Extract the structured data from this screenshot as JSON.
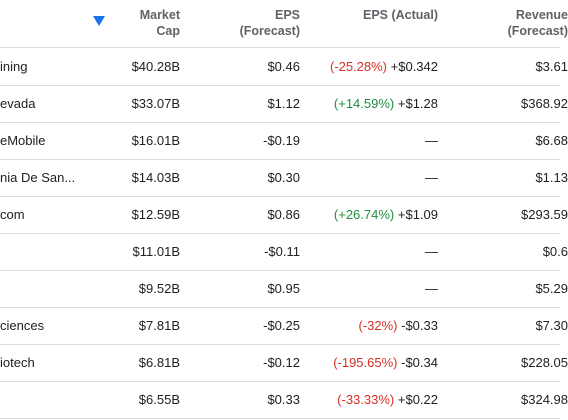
{
  "header": {
    "market_cap": [
      "Market",
      "Cap"
    ],
    "eps_forecast": [
      "EPS",
      "(Forecast)"
    ],
    "eps_actual": "EPS (Actual)",
    "revenue": [
      "Revenue",
      "(Forecast)"
    ]
  },
  "sort": {
    "icon": "sort-descending-icon",
    "color": "#1a73e8"
  },
  "colors": {
    "negative": "#d93025",
    "positive": "#1e8e3e"
  },
  "rows": [
    {
      "name": "ining",
      "market_cap": "$40.28B",
      "eps_forecast": "$0.46",
      "eps_change": "(-25.28%)",
      "eps_actual": "+$0.342",
      "revenue": "$3.61"
    },
    {
      "name": "evada",
      "market_cap": "$33.07B",
      "eps_forecast": "$1.12",
      "eps_change": "(+14.59%)",
      "eps_actual": "+$1.28",
      "revenue": "$368.92"
    },
    {
      "name": "eMobile",
      "market_cap": "$16.01B",
      "eps_forecast": "-$0.19",
      "eps_change": "",
      "eps_actual": "—",
      "revenue": "$6.68"
    },
    {
      "name": "nia De San...",
      "market_cap": "$14.03B",
      "eps_forecast": "$0.30",
      "eps_change": "",
      "eps_actual": "—",
      "revenue": "$1.13"
    },
    {
      "name": "com",
      "market_cap": "$12.59B",
      "eps_forecast": "$0.86",
      "eps_change": "(+26.74%)",
      "eps_actual": "+$1.09",
      "revenue": "$293.59"
    },
    {
      "name": "",
      "market_cap": "$11.01B",
      "eps_forecast": "-$0.11",
      "eps_change": "",
      "eps_actual": "—",
      "revenue": "$0.6"
    },
    {
      "name": "",
      "market_cap": "$9.52B",
      "eps_forecast": "$0.95",
      "eps_change": "",
      "eps_actual": "—",
      "revenue": "$5.29"
    },
    {
      "name": "ciences",
      "market_cap": "$7.81B",
      "eps_forecast": "-$0.25",
      "eps_change": "(-32%)",
      "eps_actual": "-$0.33",
      "revenue": "$7.30"
    },
    {
      "name": "iotech",
      "market_cap": "$6.81B",
      "eps_forecast": "-$0.12",
      "eps_change": "(-195.65%)",
      "eps_actual": "-$0.34",
      "revenue": "$228.05"
    },
    {
      "name": "",
      "market_cap": "$6.55B",
      "eps_forecast": "$0.33",
      "eps_change": "(-33.33%)",
      "eps_actual": "+$0.22",
      "revenue": "$324.98"
    }
  ]
}
